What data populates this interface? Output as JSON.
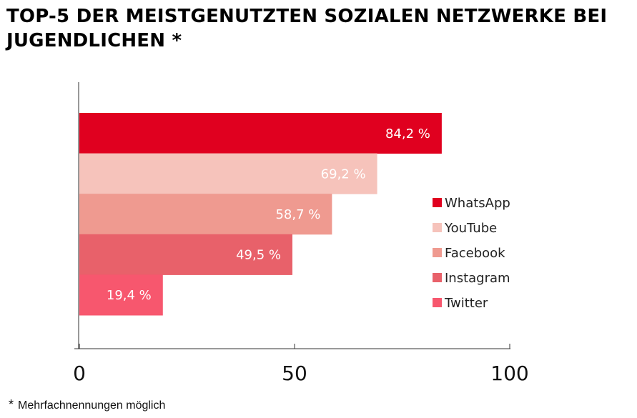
{
  "colors": {
    "whatsapp": "#e0001f",
    "youtube": "#f6c3bb",
    "facebook": "#ef9a90",
    "instagram": "#e8616a",
    "twitter": "#f7576e",
    "axis": "#333333"
  },
  "chart_data": {
    "type": "bar",
    "orientation": "horizontal",
    "title": "TOP-5 DER MEISTGENUTZTEN SOZIALEN NETZWERKE BEI JUGENDLICHEN *",
    "xlabel": "",
    "ylabel": "",
    "xlim": [
      0,
      100
    ],
    "x_ticks": [
      0,
      50,
      100
    ],
    "grid": false,
    "legend_position": "right",
    "categories": [
      "WhatsApp",
      "YouTube",
      "Facebook",
      "Instagram",
      "Twitter"
    ],
    "values": [
      84.2,
      69.2,
      58.7,
      49.5,
      19.4
    ],
    "value_labels": [
      "84,2 %",
      "69,2 %",
      "58,7 %",
      "49,5 %",
      "19,4 %"
    ],
    "series_colors": [
      "#e0001f",
      "#f6c3bb",
      "#ef9a90",
      "#e8616a",
      "#f7576e"
    ]
  },
  "footnote": {
    "marker": "*",
    "text": "Mehrfachnennungen möglich"
  }
}
